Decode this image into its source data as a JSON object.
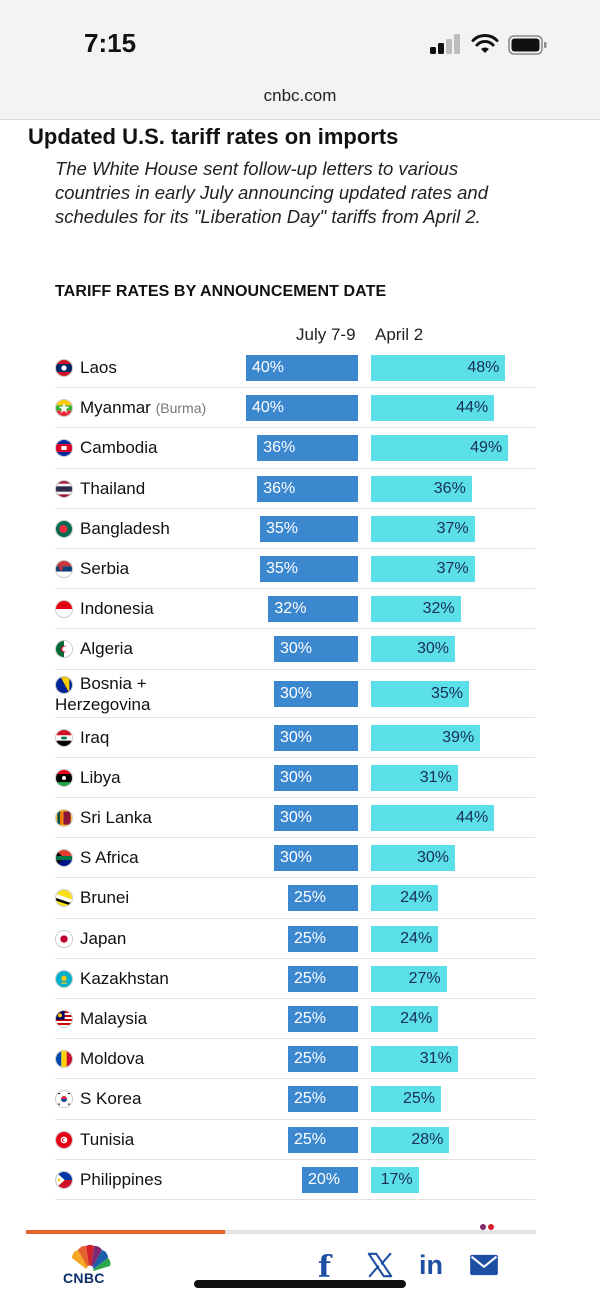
{
  "status_bar": {
    "time": "7:15"
  },
  "browser": {
    "url": "cnbc.com"
  },
  "article": {
    "title": "Updated U.S. tariff rates on imports",
    "subtitle": "The White House sent follow-up letters to various countries in early July announcing updated rates and schedules for its \"Liberation Day\" tariffs from April 2.",
    "section_title": "TARIFF RATES BY ANNOUNCEMENT DATE",
    "reading_progress_percent": 39
  },
  "chart_data": {
    "type": "bar",
    "title": "TARIFF RATES BY ANNOUNCEMENT DATE",
    "series": [
      {
        "name": "July 7-9",
        "color": "#3c88cf"
      },
      {
        "name": "April 2",
        "color": "#5be0ea"
      }
    ],
    "rows": [
      {
        "country": "Laos",
        "july": 40,
        "april": 48
      },
      {
        "country": "Myanmar",
        "note": "(Burma)",
        "july": 40,
        "april": 44
      },
      {
        "country": "Cambodia",
        "july": 36,
        "april": 49
      },
      {
        "country": "Thailand",
        "july": 36,
        "april": 36
      },
      {
        "country": "Bangladesh",
        "july": 35,
        "april": 37
      },
      {
        "country": "Serbia",
        "july": 35,
        "april": 37
      },
      {
        "country": "Indonesia",
        "july": 32,
        "april": 32
      },
      {
        "country": "Algeria",
        "july": 30,
        "april": 30
      },
      {
        "country": "Bosnia +",
        "country_line2": "Herzegovina",
        "july": 30,
        "april": 35
      },
      {
        "country": "Iraq",
        "july": 30,
        "april": 39
      },
      {
        "country": "Libya",
        "july": 30,
        "april": 31
      },
      {
        "country": "Sri Lanka",
        "july": 30,
        "april": 44
      },
      {
        "country": "S Africa",
        "july": 30,
        "april": 30
      },
      {
        "country": "Brunei",
        "july": 25,
        "april": 24
      },
      {
        "country": "Japan",
        "july": 25,
        "april": 24
      },
      {
        "country": "Kazakhstan",
        "july": 25,
        "april": 27
      },
      {
        "country": "Malaysia",
        "july": 25,
        "april": 24
      },
      {
        "country": "Moldova",
        "july": 25,
        "april": 31
      },
      {
        "country": "S Korea",
        "july": 25,
        "april": 25
      },
      {
        "country": "Tunisia",
        "july": 25,
        "april": 28
      },
      {
        "country": "Philippines",
        "july": 20,
        "april": 17
      }
    ]
  },
  "footer": {
    "logo_text": "CNBC",
    "share_icons": [
      "facebook-icon",
      "x-icon",
      "linkedin-icon",
      "mail-icon"
    ],
    "facebook_label": "f",
    "linkedin_label": "in"
  }
}
